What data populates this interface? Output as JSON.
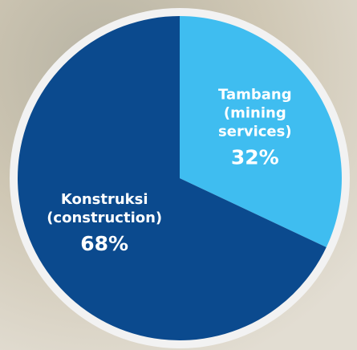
{
  "chart_data": {
    "type": "pie",
    "categories": [
      "Tambang (mining services)",
      "Konstruksi (construction)"
    ],
    "values": [
      32,
      68
    ],
    "value_labels": [
      "32%",
      "68%"
    ],
    "colors": [
      "#3fbdf0",
      "#0b4a8e"
    ]
  }
}
